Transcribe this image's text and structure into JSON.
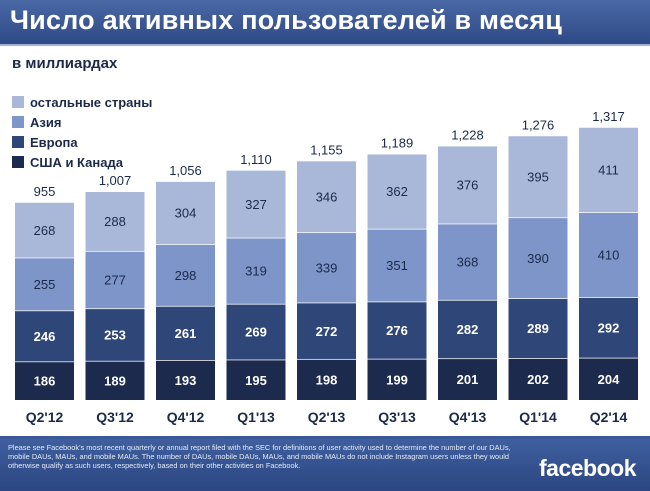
{
  "header": {
    "title": "Число активных пользователей в месяц"
  },
  "subtitle": "в миллиардах",
  "colors": {
    "other": "#a9b8d9",
    "asia": "#7d95c8",
    "europe": "#2f4678",
    "us_canada": "#1c2a4e",
    "header": "#3b5998"
  },
  "chart_data": {
    "type": "bar",
    "stacked": true,
    "title": "Число активных пользователей в месяц",
    "subtitle": "в миллиардах",
    "categories": [
      "Q2'12",
      "Q3'12",
      "Q4'12",
      "Q1'13",
      "Q2'13",
      "Q3'13",
      "Q4'13",
      "Q1'14",
      "Q2'14"
    ],
    "series": [
      {
        "name": "США и Канада",
        "key": "us_canada",
        "values": [
          186,
          189,
          193,
          195,
          198,
          199,
          201,
          202,
          204
        ]
      },
      {
        "name": "Европа",
        "key": "europe",
        "values": [
          246,
          253,
          261,
          269,
          272,
          276,
          282,
          289,
          292
        ]
      },
      {
        "name": "Азия",
        "key": "asia",
        "values": [
          255,
          277,
          298,
          319,
          339,
          351,
          368,
          390,
          410
        ]
      },
      {
        "name": "остальные страны",
        "key": "other",
        "values": [
          268,
          288,
          304,
          327,
          346,
          362,
          376,
          395,
          411
        ]
      }
    ],
    "totals": [
      "955",
      "1,007",
      "1,056",
      "1,110",
      "1,155",
      "1,189",
      "1,228",
      "1,276",
      "1,317"
    ],
    "ylim": [
      0,
      1317
    ],
    "legend_order": [
      "остальные страны",
      "Азия",
      "Европа",
      "США и Канада"
    ],
    "legend_position": "top-left"
  },
  "footer": {
    "disclaimer": "Please see Facebook's most recent quarterly or annual report filed with the SEC for definitions of user activity used to determine the number of our DAUs, mobile DAUs, MAUs, and mobile MAUs. The number of DAUs, mobile DAUs, MAUs, and mobile MAUs do not include Instagram users unless they would otherwise qualify as such users, respectively, based on their other activities on Facebook.",
    "logo": "facebook"
  }
}
